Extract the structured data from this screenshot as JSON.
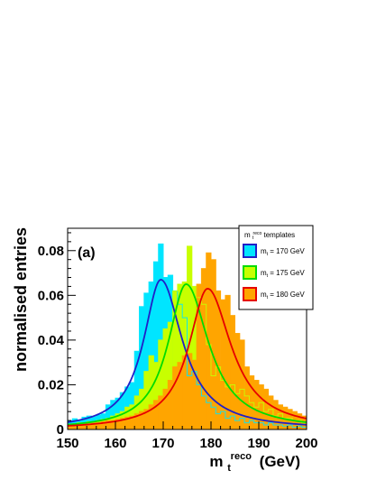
{
  "chart_data": {
    "type": "bar",
    "panel_label": "(a)",
    "xlabel": "m_t^reco (GeV)",
    "xlabel_main": "m",
    "xlabel_sub": "t",
    "xlabel_sup": "reco",
    "xlabel_unit": "(GeV)",
    "ylabel": "normalised entries",
    "xlim": [
      150,
      200
    ],
    "ylim": [
      0,
      0.09
    ],
    "x_ticks": [
      "150",
      "160",
      "170",
      "180",
      "190",
      "200"
    ],
    "y_ticks": [
      "0",
      "0.02",
      "0.04",
      "0.06",
      "0.08"
    ],
    "legend": {
      "title": "m_t^reco templates",
      "title_main": "m",
      "title_sub": "t",
      "title_sup": "reco",
      "title_rest": " templates",
      "placement": "top-right",
      "entries": [
        {
          "main": "m",
          "sub": "t",
          "rest": " = 170 GeV"
        },
        {
          "main": "m",
          "sub": "t",
          "rest": " = 175 GeV"
        },
        {
          "main": "m",
          "sub": "t",
          "rest": " = 180 GeV"
        }
      ]
    },
    "bin_edges_start": 150,
    "bin_width": 1,
    "series": [
      {
        "name": "m_t = 170 GeV",
        "fill": "#00e5ff",
        "line": "#2020c8",
        "values": [
          0.004,
          0.0048,
          0.004,
          0.0055,
          0.006,
          0.0058,
          0.0065,
          0.007,
          0.011,
          0.013,
          0.014,
          0.0165,
          0.019,
          0.021,
          0.035,
          0.055,
          0.061,
          0.066,
          0.075,
          0.083,
          0.068,
          0.069,
          0.062,
          0.056,
          0.05,
          0.024,
          0.026,
          0.02,
          0.015,
          0.012,
          0.01,
          0.007,
          0.008,
          0.005,
          0.006,
          0.004,
          0.005,
          0.003,
          0.004,
          0.003,
          0.003,
          0.002,
          0.003,
          0.002,
          0.002,
          0.0015,
          0.002,
          0.001,
          0.0015,
          0.001
        ],
        "fit_mean": 169.5,
        "fit_width": 4.4,
        "fit_peak": 0.067
      },
      {
        "name": "m_t = 175 GeV",
        "fill": "#c8ff00",
        "line": "#00dc00",
        "values": [
          0.002,
          0.0025,
          0.003,
          0.003,
          0.0035,
          0.003,
          0.004,
          0.0045,
          0.005,
          0.006,
          0.007,
          0.008,
          0.01,
          0.011,
          0.015,
          0.018,
          0.026,
          0.033,
          0.03,
          0.04,
          0.045,
          0.048,
          0.062,
          0.065,
          0.066,
          0.082,
          0.064,
          0.059,
          0.056,
          0.038,
          0.024,
          0.028,
          0.022,
          0.019,
          0.02,
          0.016,
          0.018,
          0.015,
          0.012,
          0.01,
          0.012,
          0.008,
          0.009,
          0.006,
          0.007,
          0.005,
          0.005,
          0.004,
          0.004,
          0.003
        ],
        "fit_mean": 174.8,
        "fit_width": 4.6,
        "fit_peak": 0.065
      },
      {
        "name": "m_t = 180 GeV",
        "fill": "#ffa500",
        "line": "#e60000",
        "values": [
          0.0015,
          0.002,
          0.002,
          0.0025,
          0.0025,
          0.003,
          0.003,
          0.0035,
          0.004,
          0.004,
          0.0045,
          0.005,
          0.0055,
          0.006,
          0.007,
          0.008,
          0.009,
          0.011,
          0.013,
          0.015,
          0.018,
          0.022,
          0.028,
          0.03,
          0.033,
          0.034,
          0.031,
          0.065,
          0.072,
          0.079,
          0.076,
          0.062,
          0.058,
          0.06,
          0.051,
          0.043,
          0.04,
          0.028,
          0.024,
          0.022,
          0.02,
          0.018,
          0.015,
          0.013,
          0.011,
          0.01,
          0.009,
          0.008,
          0.007,
          0.006
        ],
        "fit_mean": 179.3,
        "fit_width": 4.8,
        "fit_peak": 0.063
      }
    ]
  }
}
